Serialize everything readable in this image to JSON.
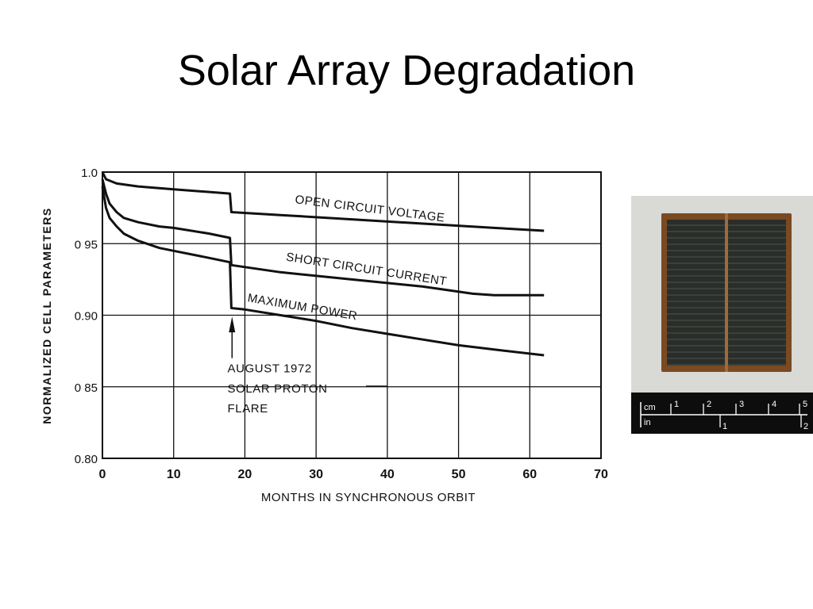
{
  "title": "Solar Array Degradation",
  "photo": {
    "ruler": {
      "cm_label": "cm",
      "in_label": "in",
      "cm_ticks": [
        "1",
        "2",
        "3",
        "4",
        "5"
      ],
      "in_ticks": [
        "1",
        "2"
      ]
    },
    "colors": {
      "background": "#d9d9d6",
      "ruler": "#0d0d0d"
    }
  },
  "chart_data": {
    "type": "line",
    "title": "",
    "xlabel": "MONTHS IN SYNCHRONOUS ORBIT",
    "ylabel": "NORMALIZED CELL PARAMETERS",
    "xlim": [
      0,
      70
    ],
    "ylim": [
      0.8,
      1.0
    ],
    "x_ticks": [
      0,
      10,
      20,
      30,
      40,
      50,
      60,
      70
    ],
    "x_tick_labels": [
      "0",
      "10",
      "20",
      "30",
      "40",
      "50",
      "60",
      "70"
    ],
    "y_ticks": [
      0.8,
      0.85,
      0.9,
      0.95,
      1.0
    ],
    "y_tick_labels": [
      "0.80",
      "0 85",
      "0.90",
      "0 95",
      "1.0"
    ],
    "grid": true,
    "series": [
      {
        "name": "OPEN CIRCUIT VOLTAGE",
        "x": [
          0,
          0.5,
          2,
          5,
          10,
          17.9,
          18.1,
          25,
          35,
          45,
          55,
          62
        ],
        "y": [
          1.0,
          0.995,
          0.992,
          0.99,
          0.988,
          0.985,
          0.972,
          0.97,
          0.967,
          0.964,
          0.961,
          0.959
        ]
      },
      {
        "name": "SHORT CIRCUIT CURRENT",
        "x": [
          0,
          0.5,
          1,
          2,
          3,
          5,
          8,
          10,
          15,
          17.9,
          18.1,
          25,
          35,
          45,
          52,
          55,
          62
        ],
        "y": [
          0.995,
          0.985,
          0.978,
          0.972,
          0.968,
          0.965,
          0.962,
          0.961,
          0.957,
          0.954,
          0.935,
          0.93,
          0.925,
          0.92,
          0.915,
          0.914,
          0.914
        ]
      },
      {
        "name": "MAXIMUM POWER",
        "x": [
          0,
          0.5,
          1,
          2,
          3,
          5,
          8,
          10,
          15,
          17.9,
          18.1,
          20,
          25,
          30,
          35,
          40,
          45,
          50,
          55,
          62
        ],
        "y": [
          0.99,
          0.975,
          0.968,
          0.962,
          0.957,
          0.952,
          0.947,
          0.945,
          0.94,
          0.937,
          0.905,
          0.904,
          0.9,
          0.896,
          0.891,
          0.887,
          0.883,
          0.879,
          0.876,
          0.872
        ]
      }
    ],
    "annotations": [
      {
        "text": "AUGUST 1972",
        "x": 18,
        "y": 0.86
      },
      {
        "text": "SOLAR PROTON",
        "x": 18,
        "y": 0.846
      },
      {
        "text": "FLARE",
        "x": 18,
        "y": 0.832
      }
    ],
    "colors": {
      "line": "#111111",
      "grid": "#111111",
      "text": "#111111"
    }
  }
}
